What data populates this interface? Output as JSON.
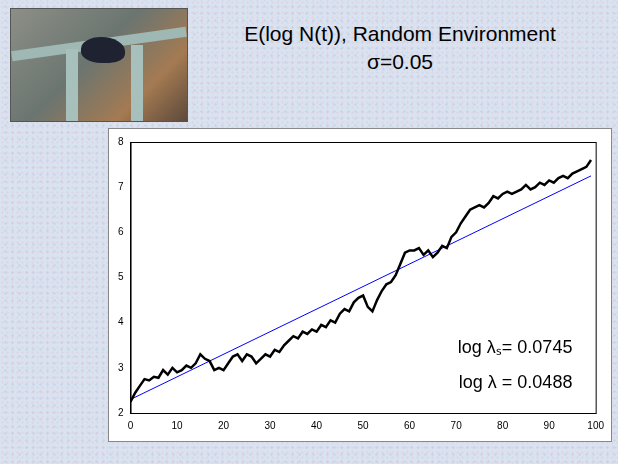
{
  "chart_data": {
    "type": "line",
    "title": "E(log N(t)), Random Environment",
    "subtitle": "σ=0.05",
    "annotations": [
      {
        "text": "log λₛ= 0.0745"
      },
      {
        "text": "log λ = 0.0488"
      }
    ],
    "series": [
      {
        "color": "#000000",
        "x": [
          0,
          1,
          2,
          3,
          4,
          5,
          6,
          7,
          8,
          9,
          10,
          11,
          12,
          13,
          14,
          15,
          16,
          17,
          18,
          19,
          20,
          21,
          22,
          23,
          24,
          25,
          26,
          27,
          28,
          29,
          30,
          31,
          32,
          33,
          34,
          35,
          36,
          37,
          38,
          39,
          40,
          41,
          42,
          43,
          44,
          45,
          46,
          47,
          48,
          49,
          50,
          51,
          52,
          53,
          54,
          55,
          56,
          57,
          58,
          59,
          60,
          61,
          62,
          63,
          64,
          65,
          66,
          67,
          68,
          69,
          70,
          71,
          72,
          73,
          74,
          75,
          76,
          77,
          78,
          79,
          80,
          81,
          82,
          83,
          84,
          85,
          86,
          87,
          88,
          89,
          90,
          91,
          92,
          93,
          94,
          95,
          96,
          97,
          98,
          99
        ],
        "values": [
          2.25,
          2.45,
          2.6,
          2.75,
          2.72,
          2.8,
          2.78,
          2.95,
          2.85,
          3.0,
          2.9,
          2.95,
          3.05,
          3.0,
          3.1,
          3.3,
          3.2,
          3.15,
          2.95,
          3.0,
          2.95,
          3.1,
          3.25,
          3.3,
          3.15,
          3.3,
          3.25,
          3.1,
          3.2,
          3.3,
          3.25,
          3.4,
          3.35,
          3.5,
          3.6,
          3.7,
          3.65,
          3.8,
          3.75,
          3.85,
          3.8,
          3.95,
          3.9,
          4.05,
          4.0,
          4.2,
          4.3,
          4.25,
          4.45,
          4.55,
          4.6,
          4.35,
          4.25,
          4.5,
          4.7,
          4.85,
          4.9,
          5.05,
          5.3,
          5.55,
          5.6,
          5.6,
          5.65,
          5.5,
          5.6,
          5.45,
          5.55,
          5.7,
          5.65,
          5.9,
          6.0,
          6.2,
          6.35,
          6.5,
          6.55,
          6.6,
          6.55,
          6.65,
          6.8,
          6.75,
          6.85,
          6.9,
          6.85,
          6.9,
          6.95,
          7.05,
          6.95,
          7.0,
          7.1,
          7.05,
          7.15,
          7.1,
          7.2,
          7.25,
          7.2,
          7.3,
          7.35,
          7.4,
          7.45,
          7.6
        ]
      },
      {
        "color": "#0000ff",
        "x": [
          0,
          99
        ],
        "values": [
          2.3,
          7.25
        ]
      }
    ],
    "xlim": [
      0,
      100
    ],
    "xticks": [
      0,
      10,
      20,
      30,
      40,
      50,
      60,
      70,
      80,
      90,
      100
    ],
    "ylim": [
      2,
      8
    ],
    "yticks": [
      2,
      3,
      4,
      5,
      6,
      7,
      8
    ],
    "grid": false
  }
}
